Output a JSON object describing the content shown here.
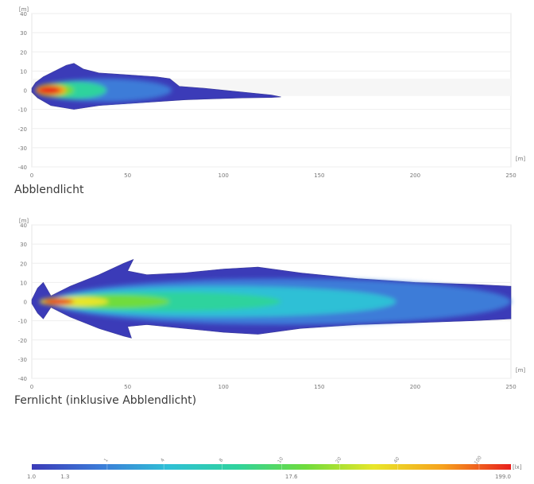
{
  "chart_data": [
    {
      "type": "heatmap",
      "caption": "Abblendlicht",
      "x_unit": "[m]",
      "y_unit": "[m]",
      "xlim": [
        0,
        250
      ],
      "ylim": [
        -40,
        40
      ],
      "x_ticks": [
        0,
        50,
        100,
        150,
        200,
        250
      ],
      "y_ticks": [
        40,
        30,
        20,
        10,
        0,
        -10,
        -20,
        -30,
        -40
      ],
      "grid": true,
      "unit": "lx",
      "upper_outline": [
        [
          0,
          1
        ],
        [
          2,
          4
        ],
        [
          6,
          7
        ],
        [
          12,
          10
        ],
        [
          18,
          13
        ],
        [
          22,
          14
        ],
        [
          27,
          11
        ],
        [
          35,
          9
        ],
        [
          50,
          8
        ],
        [
          65,
          7
        ],
        [
          72,
          6
        ],
        [
          77,
          2
        ],
        [
          90,
          1
        ],
        [
          110,
          -1
        ],
        [
          125,
          -2.5
        ],
        [
          130,
          -3.5
        ]
      ],
      "lower_outline": [
        [
          0,
          -1
        ],
        [
          3,
          -4
        ],
        [
          10,
          -8
        ],
        [
          22,
          -10
        ],
        [
          35,
          -8
        ],
        [
          50,
          -7
        ],
        [
          65,
          -6
        ],
        [
          80,
          -5
        ],
        [
          95,
          -4.5
        ],
        [
          110,
          -4
        ],
        [
          125,
          -3.8
        ],
        [
          130,
          -3.5
        ]
      ],
      "cores": [
        {
          "level": 3,
          "cx": 38,
          "cy": 0,
          "rx": 35,
          "ry": 6
        },
        {
          "level": 10,
          "cx": 22,
          "cy": 0,
          "rx": 17,
          "ry": 4.5
        },
        {
          "level": 30,
          "cx": 12,
          "cy": 0,
          "rx": 10,
          "ry": 3.5
        },
        {
          "level": 100,
          "cx": 10,
          "cy": 0,
          "rx": 8,
          "ry": 2.8
        },
        {
          "level": 199,
          "cx": 9,
          "cy": 0,
          "rx": 6,
          "ry": 2
        }
      ]
    },
    {
      "type": "heatmap",
      "caption": "Fernlicht (inklusive Abblendlicht)",
      "x_unit": "[m]",
      "y_unit": "[m]",
      "xlim": [
        0,
        250
      ],
      "ylim": [
        -40,
        40
      ],
      "x_ticks": [
        0,
        50,
        100,
        150,
        200,
        250
      ],
      "y_ticks": [
        40,
        30,
        20,
        10,
        0,
        -10,
        -20,
        -30,
        -40
      ],
      "grid": true,
      "unit": "lx",
      "upper_outline": [
        [
          0,
          1
        ],
        [
          3,
          7
        ],
        [
          6,
          10
        ],
        [
          10,
          3
        ],
        [
          20,
          8
        ],
        [
          35,
          14
        ],
        [
          48,
          20
        ],
        [
          53,
          22
        ],
        [
          50,
          16
        ],
        [
          60,
          14
        ],
        [
          80,
          15
        ],
        [
          100,
          17
        ],
        [
          118,
          18
        ],
        [
          140,
          15
        ],
        [
          170,
          12
        ],
        [
          200,
          10
        ],
        [
          230,
          9
        ],
        [
          250,
          8
        ]
      ],
      "lower_outline": [
        [
          0,
          -1
        ],
        [
          3,
          -6
        ],
        [
          6,
          -9
        ],
        [
          10,
          -3
        ],
        [
          20,
          -8
        ],
        [
          35,
          -14
        ],
        [
          48,
          -18
        ],
        [
          52,
          -19
        ],
        [
          50,
          -13
        ],
        [
          60,
          -12
        ],
        [
          80,
          -14
        ],
        [
          100,
          -16
        ],
        [
          118,
          -17
        ],
        [
          140,
          -14
        ],
        [
          170,
          -12
        ],
        [
          200,
          -11
        ],
        [
          230,
          -10
        ],
        [
          250,
          -9
        ]
      ],
      "cores": [
        {
          "level": 2,
          "cx": 130,
          "cy": 0,
          "rx": 120,
          "ry": 12
        },
        {
          "level": 4,
          "cx": 100,
          "cy": 0,
          "rx": 90,
          "ry": 8
        },
        {
          "level": 8,
          "cx": 70,
          "cy": 0,
          "rx": 60,
          "ry": 5
        },
        {
          "level": 16,
          "cx": 40,
          "cy": 0,
          "rx": 32,
          "ry": 3.5
        },
        {
          "level": 40,
          "cx": 22,
          "cy": 0,
          "rx": 18,
          "ry": 2.5
        },
        {
          "level": 199,
          "cx": 14,
          "cy": 0,
          "rx": 8,
          "ry": 1.5
        }
      ]
    }
  ],
  "scale": {
    "unit_label": "[lx]",
    "min": 1.0,
    "max": 199.0,
    "bottom_labels": [
      "1.0",
      "1.3",
      "17.6",
      "199.0"
    ],
    "bottom_label_values": [
      1.0,
      1.3,
      17.6,
      199.0
    ],
    "top_labels": [
      "1",
      "4",
      "8",
      "10",
      "20",
      "40",
      "100"
    ],
    "top_label_values": [
      2.3,
      4.3,
      8.2,
      15.8,
      30,
      57,
      140
    ],
    "gradient": [
      "#3b3bb8",
      "#3c7bd8",
      "#2fc0d6",
      "#2fd39d",
      "#6fdc3c",
      "#e9e62a",
      "#f6a21e",
      "#e8201e"
    ]
  }
}
